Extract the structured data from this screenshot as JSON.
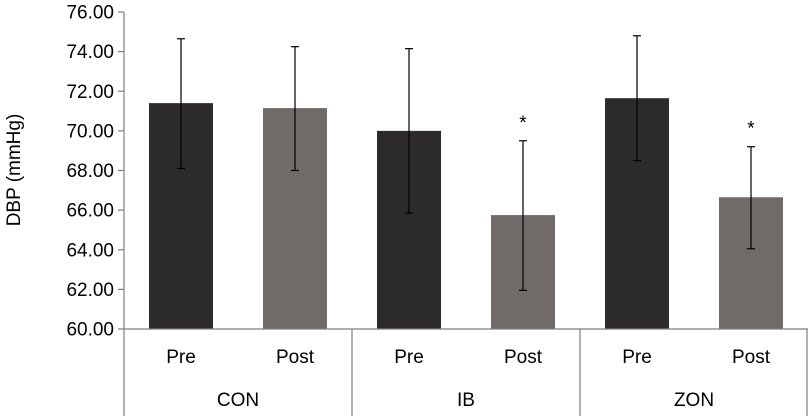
{
  "chart_data": {
    "type": "bar",
    "xlabel": "",
    "ylabel": "DBP (mmHg)",
    "ylim": [
      60,
      76
    ],
    "yticks": [
      "60.00",
      "62.00",
      "64.00",
      "66.00",
      "68.00",
      "70.00",
      "72.00",
      "74.00",
      "76.00"
    ],
    "groups": [
      {
        "name": "CON",
        "bars": [
          {
            "label": "Pre",
            "value": 71.4,
            "err_low": 68.1,
            "err_high": 74.65,
            "marker": ""
          },
          {
            "label": "Post",
            "value": 71.15,
            "err_low": 68.0,
            "err_high": 74.25,
            "marker": ""
          }
        ]
      },
      {
        "name": "IB",
        "bars": [
          {
            "label": "Pre",
            "value": 70.0,
            "err_low": 65.85,
            "err_high": 74.15,
            "marker": ""
          },
          {
            "label": "Post",
            "value": 65.75,
            "err_low": 61.95,
            "err_high": 69.5,
            "marker": "*"
          }
        ]
      },
      {
        "name": "ZON",
        "bars": [
          {
            "label": "Pre",
            "value": 71.65,
            "err_low": 68.5,
            "err_high": 74.8,
            "marker": ""
          },
          {
            "label": "Post",
            "value": 66.65,
            "err_low": 64.05,
            "err_high": 69.2,
            "marker": "*"
          }
        ]
      }
    ],
    "colors": {
      "Pre": "#2d2a2a",
      "Post": "#706b69"
    },
    "grid": false,
    "legend": "none"
  }
}
